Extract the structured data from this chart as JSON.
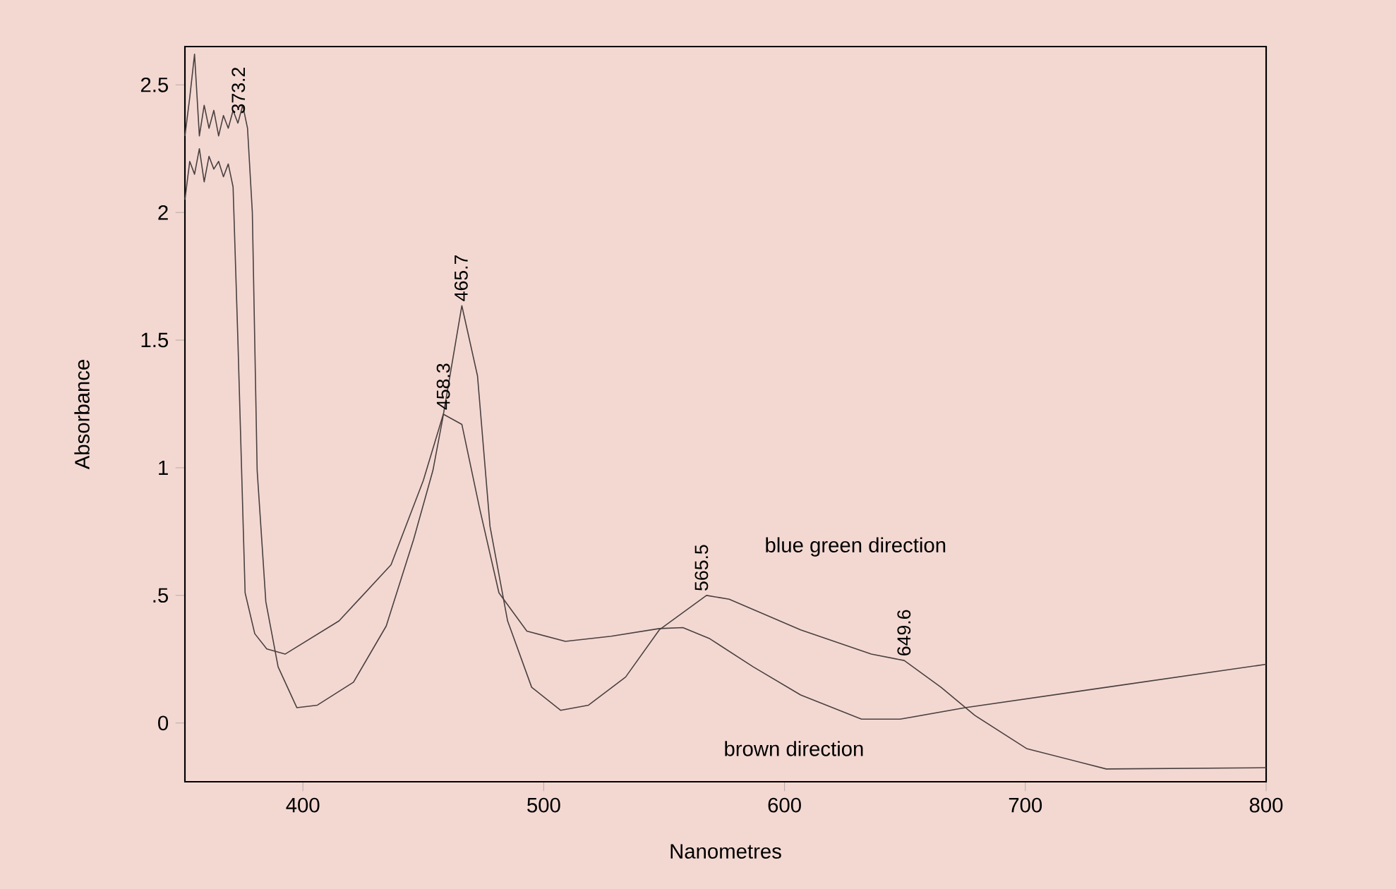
{
  "chart_data": {
    "type": "line",
    "xlabel": "Nanometres",
    "ylabel": "Absorbance",
    "xlim": [
      351,
      800
    ],
    "ylim": [
      -0.23,
      2.65
    ],
    "xticks": [
      400,
      500,
      600,
      700,
      800
    ],
    "yticks": [
      0,
      {
        "value": 0.5,
        "label": ".5"
      },
      1,
      1.5,
      2,
      2.5
    ],
    "series": [
      {
        "name": "blue green direction",
        "color": "#4a4040",
        "x": [
          351,
          353,
          355,
          357,
          359,
          361,
          363,
          365,
          367,
          369,
          371,
          373,
          375,
          377,
          379,
          381,
          384.6,
          389.7,
          397.5,
          406,
          421,
          434.6,
          446,
          454,
          458,
          466,
          472.5,
          477.7,
          485,
          495,
          507,
          518.6,
          534,
          548,
          567.6,
          577,
          606.7,
          636,
          649.7,
          665,
          679,
          700.5,
          733.6,
          800
        ],
        "values": [
          2.3,
          2.45,
          2.62,
          2.3,
          2.42,
          2.33,
          2.4,
          2.3,
          2.38,
          2.33,
          2.4,
          2.35,
          2.42,
          2.33,
          2.0,
          0.99,
          0.475,
          0.22,
          0.06,
          0.07,
          0.16,
          0.38,
          0.72,
          0.99,
          1.19,
          1.635,
          1.36,
          0.77,
          0.4,
          0.14,
          0.05,
          0.07,
          0.18,
          0.365,
          0.5,
          0.485,
          0.365,
          0.27,
          0.245,
          0.14,
          0.03,
          -0.1,
          -0.18,
          -0.175
        ]
      },
      {
        "name": "brown direction",
        "color": "#4a4040",
        "x": [
          351,
          353,
          355,
          357,
          359,
          361,
          363,
          365,
          367,
          369,
          371,
          373,
          376,
          380,
          385,
          392.6,
          415,
          436.6,
          450,
          458.3,
          466,
          473.4,
          481.4,
          493,
          509,
          528,
          548,
          557.8,
          569,
          587,
          606.7,
          632,
          648,
          675,
          733.6,
          800
        ],
        "values": [
          2.05,
          2.2,
          2.15,
          2.25,
          2.12,
          2.22,
          2.17,
          2.2,
          2.14,
          2.19,
          2.1,
          1.5,
          0.51,
          0.35,
          0.29,
          0.27,
          0.4,
          0.62,
          0.95,
          1.21,
          1.17,
          0.84,
          0.51,
          0.36,
          0.32,
          0.34,
          0.37,
          0.374,
          0.33,
          0.22,
          0.11,
          0.015,
          0.015,
          0.06,
          0.14,
          0.23
        ]
      }
    ],
    "annotations": [
      {
        "text": "373.2",
        "x": 373.2,
        "y": 2.37
      },
      {
        "text": "465.7",
        "x": 465.7,
        "y": 1.635
      },
      {
        "text": "458.3",
        "x": 458.3,
        "y": 1.21
      },
      {
        "text": "565.5",
        "x": 565.5,
        "y": 0.5
      },
      {
        "text": "649.6",
        "x": 649.6,
        "y": 0.245
      }
    ]
  }
}
